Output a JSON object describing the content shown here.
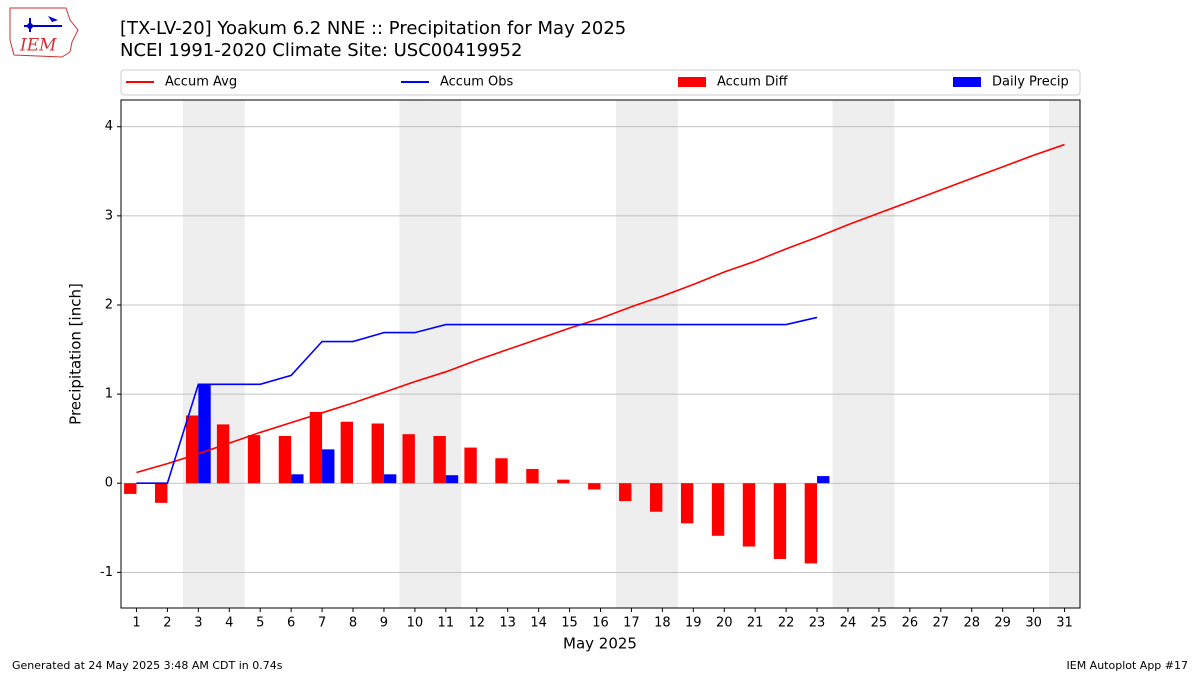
{
  "chart_data": {
    "type": "combo",
    "title": "[TX-LV-20] Yoakum 6.2 NNE :: Precipitation for May 2025",
    "subtitle": "NCEI 1991-2020 Climate Site: USC00419952",
    "logo_text": "IEM",
    "xlabel": "May 2025",
    "ylabel": "Precipitation [inch]",
    "footer_left": "Generated at 24 May 2025 3:48 AM CDT in 0.74s",
    "footer_right": "IEM Autoplot App #17",
    "x": [
      1,
      2,
      3,
      4,
      5,
      6,
      7,
      8,
      9,
      10,
      11,
      12,
      13,
      14,
      15,
      16,
      17,
      18,
      19,
      20,
      21,
      22,
      23,
      24,
      25,
      26,
      27,
      28,
      29,
      30,
      31
    ],
    "xlim": [
      0.5,
      31.5
    ],
    "xticks": [
      1,
      2,
      3,
      4,
      5,
      6,
      7,
      8,
      9,
      10,
      11,
      12,
      13,
      14,
      15,
      16,
      17,
      18,
      19,
      20,
      21,
      22,
      23,
      24,
      25,
      26,
      27,
      28,
      29,
      30,
      31
    ],
    "ylim": [
      -1.4,
      4.3
    ],
    "yticks": [
      -1,
      0,
      1,
      2,
      3,
      4
    ],
    "grid": true,
    "weekend_spans": [
      [
        2.5,
        4.5
      ],
      [
        9.5,
        11.5
      ],
      [
        16.5,
        18.5
      ],
      [
        23.5,
        25.5
      ],
      [
        30.5,
        31.5
      ]
    ],
    "series": [
      {
        "name": "Accum Avg",
        "kind": "line",
        "color": "#ff0000",
        "values": [
          0.12,
          0.22,
          0.33,
          0.45,
          0.57,
          0.68,
          0.79,
          0.9,
          1.02,
          1.14,
          1.25,
          1.38,
          1.5,
          1.62,
          1.74,
          1.85,
          1.98,
          2.1,
          2.23,
          2.37,
          2.49,
          2.63,
          2.76,
          2.9,
          3.03,
          3.16,
          3.29,
          3.42,
          3.55,
          3.68,
          3.8
        ]
      },
      {
        "name": "Accum Obs",
        "kind": "line",
        "color": "#0000ff",
        "values": [
          0,
          0,
          1.11,
          1.11,
          1.11,
          1.21,
          1.59,
          1.59,
          1.69,
          1.69,
          1.78,
          1.78,
          1.78,
          1.78,
          1.78,
          1.78,
          1.78,
          1.78,
          1.78,
          1.78,
          1.78,
          1.78,
          1.86,
          null,
          null,
          null,
          null,
          null,
          null,
          null,
          null
        ]
      },
      {
        "name": "Accum Diff",
        "kind": "bar",
        "side": "left",
        "color": "#ff0000",
        "values": [
          -0.12,
          -0.22,
          0.76,
          0.66,
          0.54,
          0.53,
          0.8,
          0.69,
          0.67,
          0.55,
          0.53,
          0.4,
          0.28,
          0.16,
          0.04,
          -0.07,
          -0.2,
          -0.32,
          -0.45,
          -0.59,
          -0.71,
          -0.85,
          -0.9,
          null,
          null,
          null,
          null,
          null,
          null,
          null,
          null
        ]
      },
      {
        "name": "Daily Precip",
        "kind": "bar",
        "side": "right",
        "color": "#0000ff",
        "values": [
          0,
          0,
          1.11,
          0,
          0,
          0.1,
          0.38,
          0,
          0.1,
          0,
          0.09,
          0,
          0,
          0,
          0,
          0,
          0,
          0,
          0,
          0,
          0,
          0,
          0.08,
          null,
          null,
          null,
          null,
          null,
          null,
          null,
          null
        ]
      }
    ]
  }
}
